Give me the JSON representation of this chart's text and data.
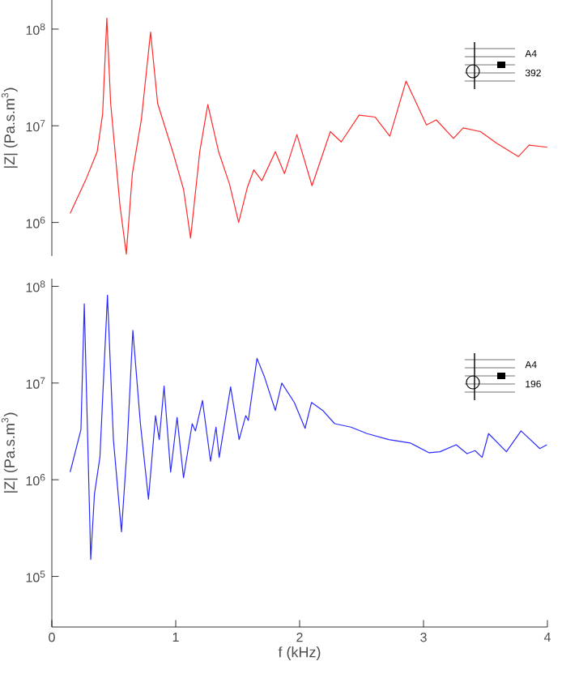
{
  "chart_data": [
    {
      "type": "line",
      "ylabel": "|Z| (Pa.s.m$^{3}$)",
      "log": "y",
      "xlim": [
        0,
        4
      ],
      "ylim": [
        450000,
        200000000
      ],
      "tick_labels": "y",
      "yticks": [
        {
          "value": 1000000,
          "label": "10$^{6}$"
        },
        {
          "value": 10000000,
          "label": "10$^{7}$"
        },
        {
          "value": 100000000,
          "label": "10$^{8}$"
        }
      ],
      "annotations": [
        "A4",
        "392"
      ],
      "series": [
        {
          "color": "#ff2a2a",
          "x": [
            0.148,
            0.279,
            0.366,
            0.41,
            0.444,
            0.475,
            0.55,
            0.601,
            0.65,
            0.723,
            0.797,
            0.854,
            0.976,
            1.063,
            1.12,
            1.194,
            1.259,
            1.346,
            1.434,
            1.508,
            1.578,
            1.63,
            1.695,
            1.804,
            1.878,
            1.978,
            2.1,
            2.248,
            2.336,
            2.48,
            2.61,
            2.728,
            2.859,
            3.024,
            3.103,
            3.242,
            3.32,
            3.46,
            3.59,
            3.765,
            3.852,
            4.0
          ],
          "values": [
            1240000,
            2860000,
            5400000,
            13200000,
            130000000,
            17000000,
            1500000,
            470000,
            3200000,
            11700000,
            93000000,
            17000000,
            5400000,
            2200000,
            690000,
            5400000,
            16600000,
            5400000,
            2500000,
            1000000,
            2300000,
            3500000,
            2700000,
            5400000,
            3200000,
            8100000,
            2400000,
            8700000,
            6800000,
            12900000,
            12300000,
            7800000,
            29000000,
            10200000,
            11500000,
            7400000,
            9500000,
            8700000,
            6600000,
            4800000,
            6300000,
            6000000
          ]
        }
      ]
    },
    {
      "type": "line",
      "ylabel": "|Z| (Pa.s.m$^{3}$)",
      "xlabel": "f (kHz)",
      "log": "y",
      "xlim": [
        0,
        4
      ],
      "ylim": [
        30000,
        120000000
      ],
      "xticks": [
        0,
        1,
        2,
        3,
        4
      ],
      "yticks": [
        {
          "value": 100000,
          "label": "10$^{5}$"
        },
        {
          "value": 1000000,
          "label": "10$^{6}$"
        },
        {
          "value": 10000000,
          "label": "10$^{7}$"
        },
        {
          "value": 100000000,
          "label": "10$^{8}$"
        }
      ],
      "annotations": [
        "A4",
        "196"
      ],
      "series": [
        {
          "color": "#2a2aff",
          "x": [
            0.148,
            0.235,
            0.262,
            0.314,
            0.344,
            0.388,
            0.449,
            0.497,
            0.562,
            0.606,
            0.654,
            0.715,
            0.78,
            0.837,
            0.867,
            0.906,
            0.959,
            1.011,
            1.063,
            1.133,
            1.159,
            1.216,
            1.281,
            1.325,
            1.351,
            1.443,
            1.512,
            1.565,
            1.586,
            1.656,
            1.717,
            1.804,
            1.856,
            1.957,
            2.044,
            2.096,
            2.187,
            2.283,
            2.414,
            2.545,
            2.719,
            2.893,
            3.046,
            3.133,
            3.264,
            3.351,
            3.416,
            3.473,
            3.525,
            3.669,
            3.787,
            3.939,
            3.996
          ],
          "values": [
            1200000,
            3300000,
            66000000,
            150000,
            710000,
            1700000,
            81000000,
            2600000,
            290000,
            2000000,
            35000000,
            3800000,
            630000,
            4600000,
            2600000,
            9300000,
            1200000,
            4400000,
            1050000,
            3800000,
            3200000,
            6600000,
            1550000,
            3500000,
            1700000,
            9100000,
            2600000,
            4600000,
            4100000,
            18000000,
            11500000,
            5200000,
            10000000,
            6300000,
            3400000,
            6300000,
            5200000,
            3800000,
            3500000,
            3000000,
            2600000,
            2400000,
            1900000,
            1950000,
            2300000,
            1860000,
            2000000,
            1700000,
            3000000,
            1950000,
            3200000,
            2100000,
            2300000
          ]
        }
      ]
    }
  ]
}
